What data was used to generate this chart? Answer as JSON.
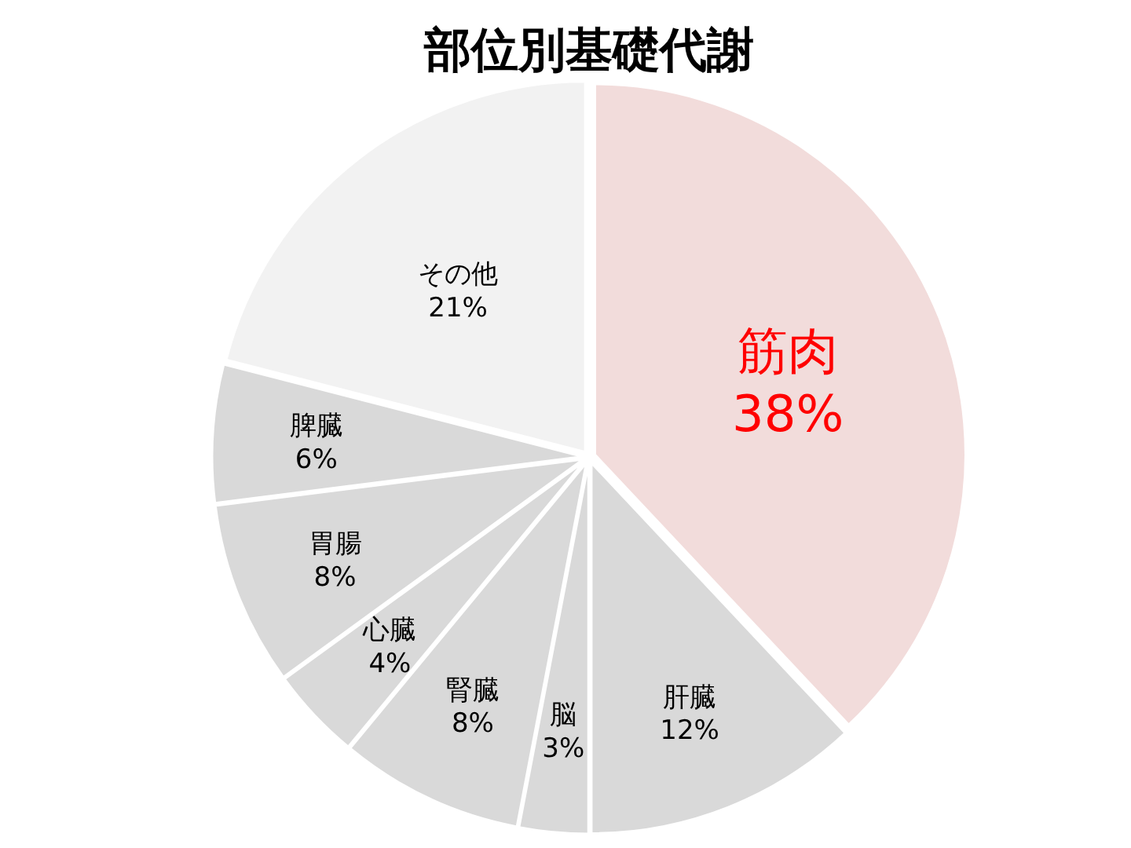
{
  "chart_data": {
    "type": "pie",
    "title": "部位別基礎代謝",
    "categories": [
      "筋肉",
      "肝臓",
      "脳",
      "腎臓",
      "心臓",
      "胃腸",
      "脾臓",
      "その他"
    ],
    "values": [
      38,
      12,
      3,
      8,
      4,
      8,
      6,
      21
    ],
    "colors": [
      "#f2dcdb",
      "#d9d9d9",
      "#d9d9d9",
      "#d9d9d9",
      "#d9d9d9",
      "#d9d9d9",
      "#d9d9d9",
      "#f2f2f2"
    ],
    "value_labels": [
      "38%",
      "12%",
      "3%",
      "8%",
      "4%",
      "8%",
      "6%",
      "21%"
    ]
  }
}
